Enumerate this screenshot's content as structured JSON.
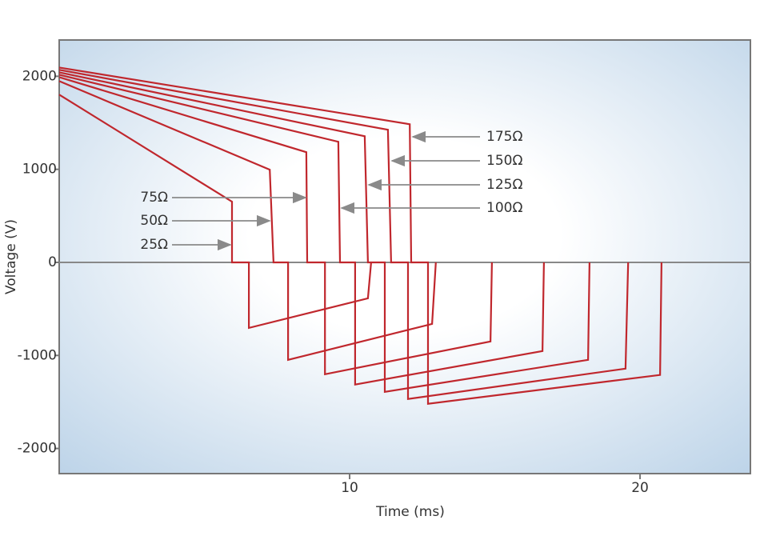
{
  "chart_data": {
    "type": "line",
    "xlabel": "Time (ms)",
    "ylabel": "Voltage (V)",
    "xlim": [
      0,
      23.8
    ],
    "ylim": [
      -2270,
      2390
    ],
    "xticks": [
      10,
      20
    ],
    "yticks": [
      -2000,
      -1000,
      0,
      1000,
      2000
    ],
    "series": [
      {
        "name": "25Ω",
        "color": "#c0272d",
        "x": [
          0,
          5.95,
          5.95,
          6.53,
          6.53,
          10.63,
          10.74
        ],
        "values": [
          1803,
          652,
          0,
          0,
          -704,
          -386,
          0
        ]
      },
      {
        "name": "50Ω",
        "color": "#c0272d",
        "x": [
          0,
          7.25,
          7.38,
          7.88,
          7.88,
          12.84,
          12.97
        ],
        "values": [
          1948,
          996,
          0,
          0,
          -1047,
          -661,
          0
        ]
      },
      {
        "name": "75Ω",
        "color": "#c0272d",
        "x": [
          0,
          8.51,
          8.54,
          9.15,
          9.15,
          14.85,
          14.9
        ],
        "values": [
          1991,
          1185,
          0,
          0,
          -1202,
          -850,
          0
        ]
      },
      {
        "name": "100Ω",
        "color": "#c0272d",
        "x": [
          0,
          9.61,
          9.67,
          10.19,
          10.19,
          16.64,
          16.69
        ],
        "values": [
          2017,
          1296,
          0,
          0,
          -1313,
          -953,
          0
        ]
      },
      {
        "name": "125Ω",
        "color": "#c0272d",
        "x": [
          0,
          10.52,
          10.63,
          11.21,
          11.21,
          18.21,
          18.26
        ],
        "values": [
          2043,
          1356,
          0,
          0,
          -1391,
          -1047,
          0
        ]
      },
      {
        "name": "150Ω",
        "color": "#c0272d",
        "x": [
          0,
          11.32,
          11.43,
          12.01,
          12.01,
          19.5,
          19.59
        ],
        "values": [
          2069,
          1425,
          0,
          0,
          -1468,
          -1142,
          0
        ]
      },
      {
        "name": "175Ω",
        "color": "#c0272d",
        "x": [
          0,
          12.07,
          12.12,
          12.7,
          12.7,
          20.69,
          20.74
        ],
        "values": [
          2094,
          1485,
          0,
          0,
          -1519,
          -1210,
          0
        ]
      }
    ]
  }
}
